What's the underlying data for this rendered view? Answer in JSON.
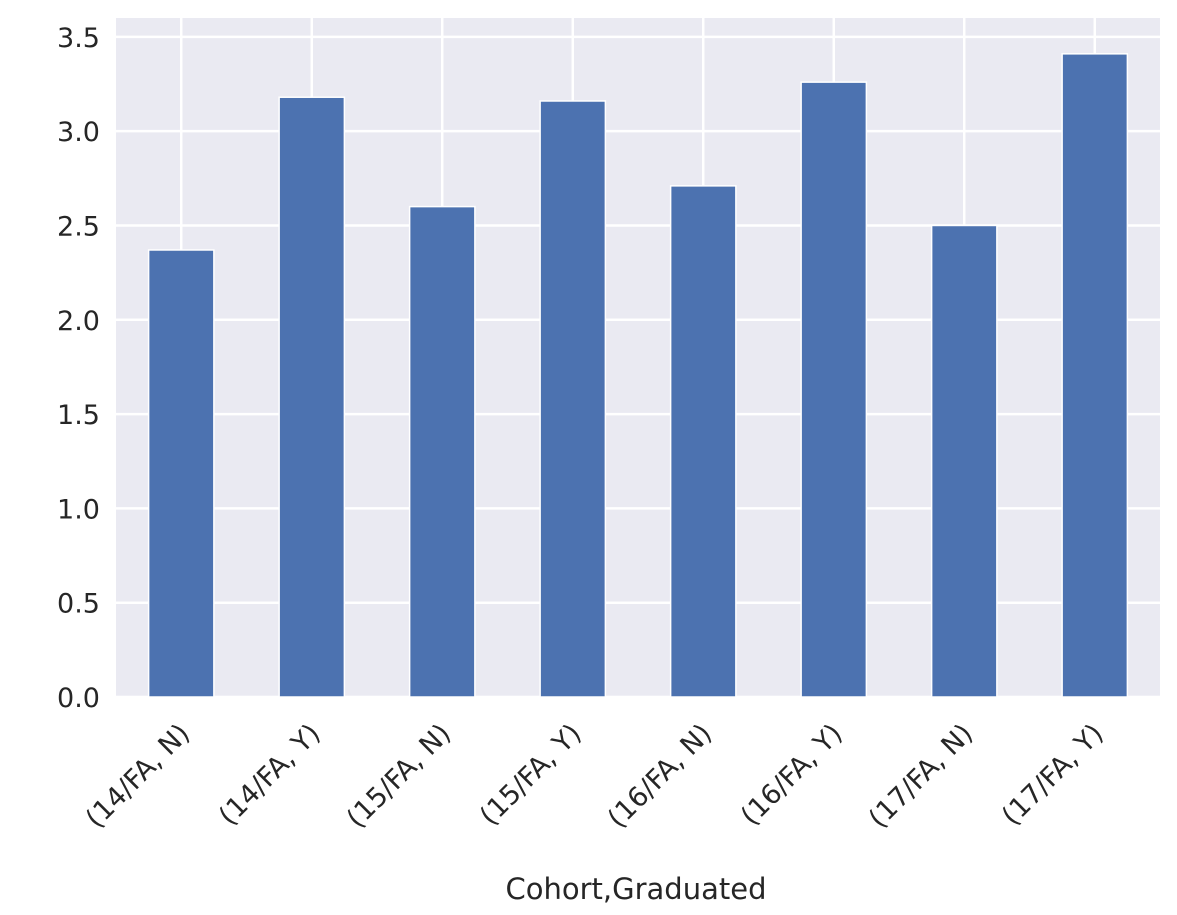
{
  "chart_data": {
    "type": "bar",
    "title": "",
    "xlabel": "Cohort,Graduated",
    "ylabel": "",
    "categories": [
      "(14/FA, N)",
      "(14/FA, Y)",
      "(15/FA, N)",
      "(15/FA, Y)",
      "(16/FA, N)",
      "(16/FA, Y)",
      "(17/FA, N)",
      "(17/FA, Y)"
    ],
    "values": [
      2.37,
      3.18,
      2.6,
      3.16,
      2.71,
      3.26,
      2.5,
      3.41
    ],
    "ylim": [
      0,
      3.6
    ],
    "yticks": [
      0.0,
      0.5,
      1.0,
      1.5,
      2.0,
      2.5,
      3.0,
      3.5
    ],
    "ytick_labels": [
      "0.0",
      "0.5",
      "1.0",
      "1.5",
      "2.0",
      "2.5",
      "3.0",
      "3.5"
    ],
    "grid": true,
    "xtick_rotation_deg": 45,
    "colors": {
      "bar": "#4c72b0",
      "background": "#eaeaf2",
      "grid": "#ffffff",
      "text": "#262626"
    }
  }
}
